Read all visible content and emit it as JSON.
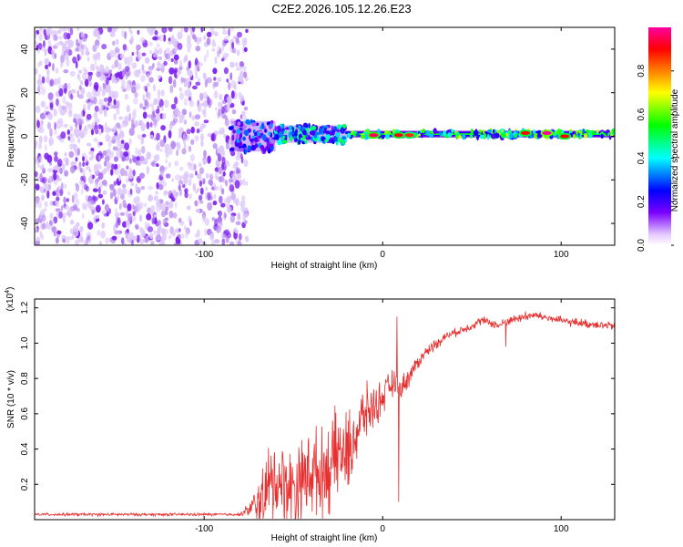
{
  "chart_data": [
    {
      "type": "heatmap",
      "title": "C2E2.2026.105.12.26.E23",
      "xlabel": "Height of straight line (km)",
      "ylabel": "Frequency (Hz)",
      "xlim": [
        -195,
        130
      ],
      "ylim": [
        -50,
        50
      ],
      "xticks": [
        -100,
        0,
        100
      ],
      "xtick_labels": [
        "-100",
        "0",
        "100"
      ],
      "yticks": [
        -40,
        -20,
        0,
        20,
        40
      ],
      "ytick_labels": [
        "-40",
        "-20",
        "0",
        "20",
        "40"
      ],
      "colorbar": {
        "label": "Normalized spectral amplitude",
        "range": [
          0,
          1
        ],
        "ticks": [
          0.0,
          0.2,
          0.4,
          0.6,
          0.8
        ],
        "tick_labels": [
          "0.0",
          "0.2",
          "0.4",
          "0.6",
          "0.8"
        ],
        "colormap": [
          "#ffffff",
          "#e4c8ff",
          "#7b00ff",
          "#0000ff",
          "#00ffff",
          "#00ff00",
          "#ffff00",
          "#ff8000",
          "#ff0000",
          "#ff00a0"
        ]
      },
      "noise_region": {
        "x_from": -195,
        "x_to": -80,
        "freq_range": [
          -50,
          50
        ],
        "amplitude": 0.08
      },
      "signal_band": [
        {
          "x_from": -85,
          "x_to": -60,
          "freq_center": 0,
          "half_width": 7,
          "amplitude": 0.35
        },
        {
          "x_from": -60,
          "x_to": -20,
          "freq_center": 1,
          "half_width": 4,
          "amplitude": 0.45
        },
        {
          "x_from": -20,
          "x_to": 130,
          "freq_center": 1,
          "half_width": 1.5,
          "amplitude": 0.55
        }
      ],
      "peaks": [
        {
          "x": -5,
          "freq": 0.5,
          "amplitude": 0.95
        },
        {
          "x": 9,
          "freq": 0.5,
          "amplitude": 0.9
        },
        {
          "x": 15,
          "freq": 0.5,
          "amplitude": 0.85
        },
        {
          "x": 80,
          "freq": 1.5,
          "amplitude": 0.9
        },
        {
          "x": 92,
          "freq": 1.5,
          "amplitude": 1.0
        },
        {
          "x": 102,
          "freq": 0,
          "amplitude": 0.9
        }
      ]
    },
    {
      "type": "line",
      "xlabel": "Height of straight line (km)",
      "ylabel": "SNR (10 * v/v)",
      "y_multiplier": "(x10",
      "y_multiplier_exp": "4",
      "y_multiplier_close": ")",
      "xlim": [
        -195,
        130
      ],
      "ylim": [
        0,
        1.25
      ],
      "xticks": [
        -100,
        0,
        100
      ],
      "xtick_labels": [
        "-100",
        "0",
        "100"
      ],
      "yticks": [
        0.2,
        0.4,
        0.6,
        0.8,
        1.0,
        1.2
      ],
      "ytick_labels": [
        "0.2",
        "0.4",
        "0.6",
        "0.8",
        "1.0",
        "1.2"
      ],
      "series": [
        {
          "name": "SNR",
          "color": "#e83030",
          "x": [
            -195,
            -150,
            -100,
            -80,
            -75,
            -70,
            -65,
            -60,
            -55,
            -50,
            -45,
            -40,
            -35,
            -30,
            -25,
            -20,
            -15,
            -10,
            -5,
            0,
            5,
            10,
            15,
            20,
            25,
            30,
            35,
            40,
            45,
            50,
            55,
            60,
            65,
            70,
            75,
            80,
            85,
            90,
            95,
            100,
            105,
            110,
            115,
            120,
            125,
            130
          ],
          "y": [
            0.03,
            0.03,
            0.03,
            0.03,
            0.06,
            0.1,
            0.18,
            0.25,
            0.22,
            0.2,
            0.25,
            0.3,
            0.28,
            0.32,
            0.4,
            0.38,
            0.5,
            0.62,
            0.65,
            0.7,
            0.78,
            0.75,
            0.82,
            0.9,
            0.96,
            1.0,
            1.04,
            1.06,
            1.08,
            1.1,
            1.13,
            1.12,
            1.1,
            1.13,
            1.14,
            1.15,
            1.16,
            1.15,
            1.14,
            1.13,
            1.12,
            1.12,
            1.11,
            1.11,
            1.1,
            1.1
          ],
          "noise_amplitude": [
            0.01,
            0.01,
            0.01,
            0.01,
            0.05,
            0.15,
            0.3,
            0.3,
            0.28,
            0.3,
            0.3,
            0.32,
            0.3,
            0.32,
            0.32,
            0.3,
            0.25,
            0.2,
            0.15,
            0.12,
            0.1,
            0.08,
            0.07,
            0.05,
            0.04,
            0.04,
            0.03,
            0.03,
            0.03,
            0.03,
            0.03,
            0.03,
            0.03,
            0.03,
            0.03,
            0.03,
            0.03,
            0.03,
            0.03,
            0.03,
            0.03,
            0.03,
            0.03,
            0.03,
            0.03,
            0.03
          ]
        }
      ],
      "spikes": [
        {
          "x": 8,
          "y": 1.15
        },
        {
          "x": 9,
          "y": 0.1
        },
        {
          "x": 69,
          "y": 0.98
        },
        {
          "x": 80,
          "y": 1.18
        }
      ]
    }
  ]
}
